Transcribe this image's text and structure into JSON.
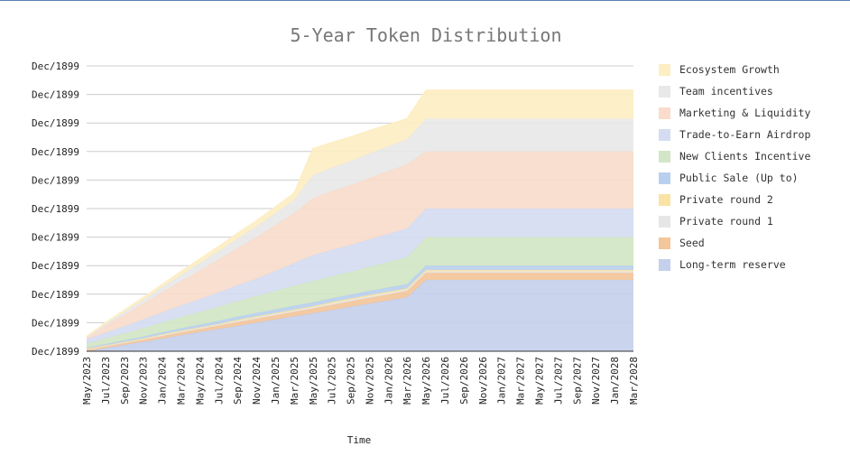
{
  "chart_data": {
    "type": "area",
    "title": "5-Year Token Distribution",
    "xlabel": "Time",
    "ylabel": "",
    "y_tick_labels": [
      "Dec/1899",
      "Dec/1899",
      "Dec/1899",
      "Dec/1899",
      "Dec/1899",
      "Dec/1899",
      "Dec/1899",
      "Dec/1899",
      "Dec/1899",
      "Dec/1899",
      "Dec/1899"
    ],
    "ylim": [
      0,
      100
    ],
    "x": [
      "May/2023",
      "Jul/2023",
      "Sep/2023",
      "Nov/2023",
      "Jan/2024",
      "Mar/2024",
      "May/2024",
      "Jul/2024",
      "Sep/2024",
      "Nov/2024",
      "Jan/2025",
      "Mar/2025",
      "May/2025",
      "Jul/2025",
      "Sep/2025",
      "Nov/2025",
      "Jan/2026",
      "Mar/2026",
      "May/2026",
      "Jul/2026",
      "Sep/2026",
      "Nov/2026",
      "Jan/2027",
      "Mar/2027",
      "May/2027",
      "Jul/2027",
      "Sep/2027",
      "Nov/2027",
      "Jan/2028",
      "Mar/2028"
    ],
    "stacked": true,
    "grid": true,
    "legend_position": "right",
    "series": [
      {
        "name": "Long-term reserve",
        "color": "#c5d0ec",
        "values": [
          0,
          1.1,
          2.2,
          3.3,
          4.4,
          5.6,
          6.7,
          7.8,
          8.9,
          10,
          11.1,
          12.2,
          13.3,
          14.4,
          15.6,
          16.7,
          17.8,
          18.9,
          25,
          25,
          25,
          25,
          25,
          25,
          25,
          25,
          25,
          25,
          25,
          25
        ]
      },
      {
        "name": "Seed",
        "color": "#f3c69b",
        "values": [
          0.5,
          0.6,
          0.7,
          0.8,
          0.9,
          1.0,
          1.1,
          1.2,
          1.3,
          1.4,
          1.5,
          1.6,
          1.7,
          1.8,
          1.9,
          2.0,
          2.1,
          2.2,
          2.5,
          2.5,
          2.5,
          2.5,
          2.5,
          2.5,
          2.5,
          2.5,
          2.5,
          2.5,
          2.5,
          2.5
        ]
      },
      {
        "name": "Private round 1",
        "color": "#e6e6e6",
        "values": [
          0.2,
          0.2,
          0.2,
          0.2,
          0.3,
          0.3,
          0.3,
          0.3,
          0.4,
          0.4,
          0.4,
          0.4,
          0.4,
          0.5,
          0.5,
          0.5,
          0.5,
          0.5,
          0.5,
          0.5,
          0.5,
          0.5,
          0.5,
          0.5,
          0.5,
          0.5,
          0.5,
          0.5,
          0.5,
          0.5
        ]
      },
      {
        "name": "Private round 2",
        "color": "#f9e3a5",
        "values": [
          0.2,
          0.2,
          0.2,
          0.2,
          0.3,
          0.3,
          0.3,
          0.3,
          0.4,
          0.4,
          0.4,
          0.4,
          0.4,
          0.5,
          0.5,
          0.5,
          0.5,
          0.5,
          0.5,
          0.5,
          0.5,
          0.5,
          0.5,
          0.5,
          0.5,
          0.5,
          0.5,
          0.5,
          0.5,
          0.5
        ]
      },
      {
        "name": "Public Sale (Up to)",
        "color": "#b8d0ee",
        "values": [
          0.3,
          0.4,
          0.5,
          0.6,
          0.7,
          0.8,
          0.9,
          1.0,
          1.1,
          1.2,
          1.2,
          1.3,
          1.3,
          1.3,
          1.3,
          1.4,
          1.4,
          1.4,
          1.5,
          1.5,
          1.5,
          1.5,
          1.5,
          1.5,
          1.5,
          1.5,
          1.5,
          1.5,
          1.5,
          1.5
        ]
      },
      {
        "name": "New Clients Incentive",
        "color": "#d2e6c6",
        "values": [
          1.5,
          2.0,
          2.5,
          3.0,
          3.5,
          4.0,
          4.5,
          5.0,
          5.5,
          6.0,
          6.5,
          7.0,
          7.5,
          7.8,
          8.0,
          8.5,
          9.0,
          9.5,
          10,
          10,
          10,
          10,
          10,
          10,
          10,
          10,
          10,
          10,
          10,
          10
        ]
      },
      {
        "name": "Trade-to-Earn Airdrop",
        "color": "#d5dcf2",
        "values": [
          1.5,
          2.0,
          2.5,
          3.0,
          3.5,
          4.0,
          4.5,
          5.0,
          5.5,
          6.0,
          7.0,
          8.0,
          9.0,
          9.2,
          9.4,
          9.6,
          9.8,
          10,
          10,
          10,
          10,
          10,
          10,
          10,
          10,
          10,
          10,
          10,
          10,
          10
        ]
      },
      {
        "name": "Marketing & Liquidity",
        "color": "#f9dccb",
        "values": [
          0.5,
          2.5,
          4.0,
          5.5,
          7.0,
          8.5,
          10,
          11.5,
          13,
          14.5,
          16,
          17.5,
          20,
          20.5,
          21,
          21.5,
          22,
          22.5,
          20,
          20,
          20,
          20,
          20,
          20,
          20,
          20,
          20,
          20,
          20,
          20
        ]
      },
      {
        "name": "Team incentives",
        "color": "#e8e8e8",
        "values": [
          0.3,
          0.6,
          1.0,
          1.4,
          1.8,
          2.2,
          2.6,
          3.0,
          3.4,
          3.8,
          4.2,
          4.6,
          8.1,
          8.3,
          8.5,
          8.6,
          8.7,
          8.8,
          11.5,
          11.5,
          11.5,
          11.5,
          11.5,
          11.5,
          11.5,
          11.5,
          11.5,
          11.5,
          11.5,
          11.5
        ]
      },
      {
        "name": "Ecosystem Growth",
        "color": "#fdeec3",
        "values": [
          0.2,
          0.4,
          0.6,
          0.8,
          1.0,
          1.2,
          1.4,
          1.6,
          1.8,
          2.0,
          2.2,
          2.4,
          9.3,
          8.8,
          8.4,
          8.0,
          7.6,
          7.2,
          10,
          10,
          10,
          10,
          10,
          10,
          10,
          10,
          10,
          10,
          10,
          10
        ]
      }
    ],
    "legend_order": [
      "Ecosystem Growth",
      "Team incentives",
      "Marketing & Liquidity",
      "Trade-to-Earn Airdrop",
      "New Clients Incentive",
      "Public Sale (Up to)",
      "Private round 2",
      "Private round 1",
      "Seed",
      "Long-term reserve"
    ]
  }
}
